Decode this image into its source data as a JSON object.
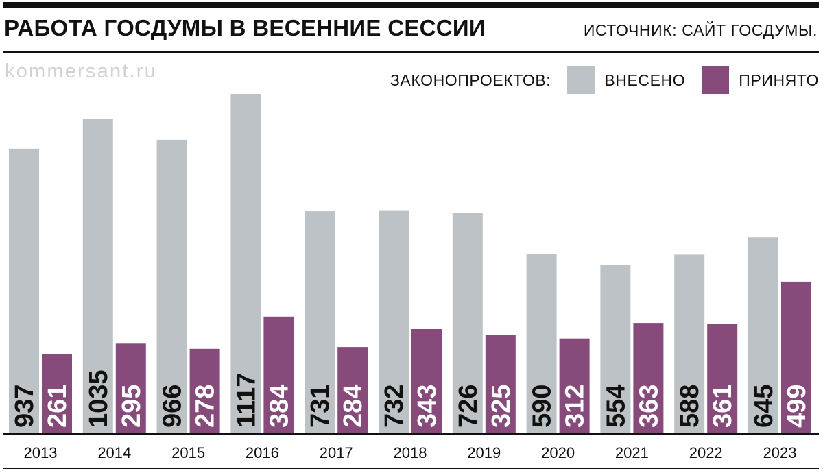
{
  "header": {
    "title": "РАБОТА ГОСДУМЫ В ВЕСЕННИЕ СЕССИИ",
    "source": "ИСТОЧНИК: САЙТ ГОСДУМЫ."
  },
  "watermark": "kommersant.ru",
  "legend": {
    "title": "ЗАКОНОПРОЕКТОВ:",
    "items": [
      "ВНЕСЕНО",
      "ПРИНЯТО"
    ]
  },
  "colors": {
    "introduced": "#bcc2c5",
    "adopted": "#864a7b",
    "rule": "#111111",
    "watermark": "#d2d2d2"
  },
  "chart_data": {
    "type": "bar",
    "title": "РАБОТА ГОСДУМЫ В ВЕСЕННИЕ СЕССИИ",
    "xlabel": "",
    "ylabel": "",
    "categories": [
      "2013",
      "2014",
      "2015",
      "2016",
      "2017",
      "2018",
      "2019",
      "2020",
      "2021",
      "2022",
      "2023"
    ],
    "series": [
      {
        "name": "ВНЕСЕНО",
        "values": [
          937,
          1035,
          966,
          1117,
          731,
          732,
          726,
          590,
          554,
          588,
          645
        ]
      },
      {
        "name": "ПРИНЯТО",
        "values": [
          261,
          295,
          278,
          384,
          284,
          343,
          325,
          312,
          363,
          361,
          499
        ]
      }
    ],
    "ylim": [
      0,
      1117
    ],
    "grid": false,
    "legend": "top-right",
    "data_labels": "inside-bottom-rotated"
  }
}
